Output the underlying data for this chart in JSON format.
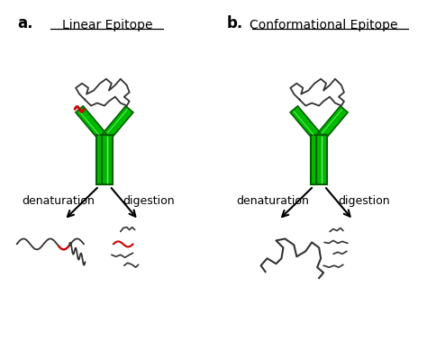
{
  "bg_color": "#ffffff",
  "title_a": "Linear Epitope",
  "title_b": "Conformational Epitope",
  "label_a": "a.",
  "label_b": "b.",
  "denaturation": "denaturation",
  "digestion": "digestion",
  "green_dark": "#006000",
  "green_mid": "#00b800",
  "green_light": "#80ff80",
  "red_color": "#cc0000",
  "dark_gray": "#333333",
  "title_fontsize": 10,
  "label_fontsize": 12,
  "text_fontsize": 9
}
